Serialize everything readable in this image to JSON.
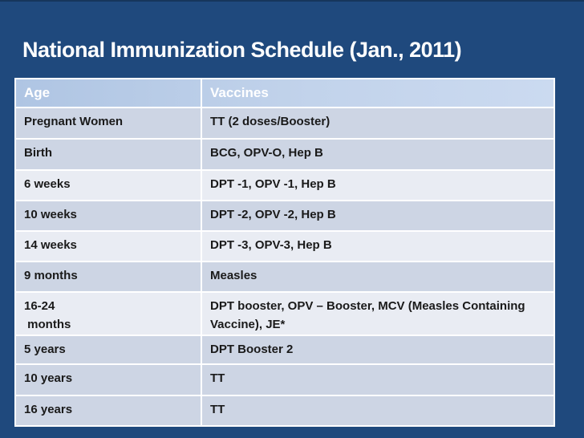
{
  "slide": {
    "title": "National Immunization Schedule (Jan., 2011)",
    "background_color": "#1F497D",
    "title_color": "#FFFFFF",
    "top_edge_color": "#16365C"
  },
  "table": {
    "columns": [
      "Age",
      "Vaccines"
    ],
    "header": {
      "bg_left": "#AFC5E3",
      "bg_right": "#CBDAF0",
      "text_color": "#FFFFFF"
    },
    "grid_color": "#FFFFFF",
    "cell_text_color": "#1A1A1A",
    "band_colors": {
      "dark": "#CDD5E4",
      "light": "#E9ECF3"
    },
    "rows": [
      {
        "age": "Pregnant Women",
        "vaccines": "TT (2 doses/Booster)",
        "band": "dark"
      },
      {
        "age": "Birth",
        "vaccines": "BCG, OPV-O, Hep B",
        "band": "dark"
      },
      {
        "age": "6 weeks",
        "vaccines": "DPT -1, OPV -1, Hep B",
        "band": "light"
      },
      {
        "age": "10 weeks",
        "vaccines": "DPT -2, OPV -2, Hep B",
        "band": "dark"
      },
      {
        "age": "14 weeks",
        "vaccines": "DPT -3, OPV-3, Hep B",
        "band": "light"
      },
      {
        "age": "9 months",
        "vaccines": "Measles",
        "band": "dark"
      },
      {
        "age": "16-24\n months",
        "vaccines": "DPT booster, OPV – Booster, MCV (Measles Containing Vaccine), JE*",
        "band": "light"
      },
      {
        "age": "5 years",
        "vaccines": "DPT Booster 2",
        "band": "dark"
      },
      {
        "age": "10 years",
        "vaccines": "TT",
        "band": "dark"
      },
      {
        "age": "16 years",
        "vaccines": "TT",
        "band": "dark"
      }
    ]
  }
}
